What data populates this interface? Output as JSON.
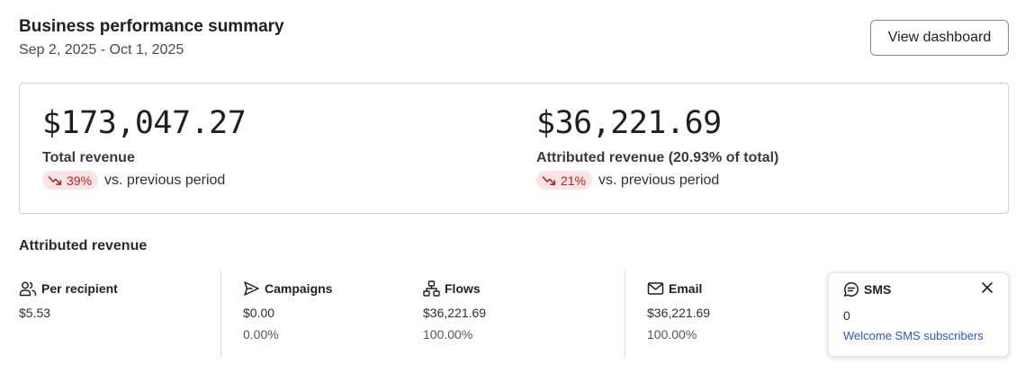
{
  "header": {
    "title": "Business performance summary",
    "date_range": "Sep 2, 2025 - Oct 1, 2025",
    "view_button_label": "View dashboard"
  },
  "summary": {
    "total": {
      "value": "$173,047.27",
      "label": "Total revenue",
      "change": "39%",
      "change_direction": "down",
      "comparison": "vs. previous period"
    },
    "attributed": {
      "value": "$36,221.69",
      "label": "Attributed revenue (20.93% of total)",
      "change": "21%",
      "change_direction": "down",
      "comparison": "vs. previous period"
    }
  },
  "attributed_section": {
    "title": "Attributed revenue",
    "columns": [
      {
        "name": "Per recipient",
        "icon": "users-icon",
        "value": "$5.53"
      },
      {
        "name": "Campaigns",
        "icon": "send-icon",
        "value": "$0.00",
        "percent": "0.00%"
      },
      {
        "name": "Flows",
        "icon": "flow-icon",
        "value": "$36,221.69",
        "percent": "100.00%"
      },
      {
        "name": "Email",
        "icon": "mail-icon",
        "value": "$36,221.69",
        "percent": "100.00%"
      }
    ],
    "sms": {
      "name": "SMS",
      "icon": "chat-icon",
      "value": "0",
      "link": "Welcome SMS subscribers"
    }
  },
  "colors": {
    "badge_bg": "#fde4e4",
    "badge_text": "#b42318",
    "link": "#2d55c5",
    "border": "#d3d3d3"
  }
}
